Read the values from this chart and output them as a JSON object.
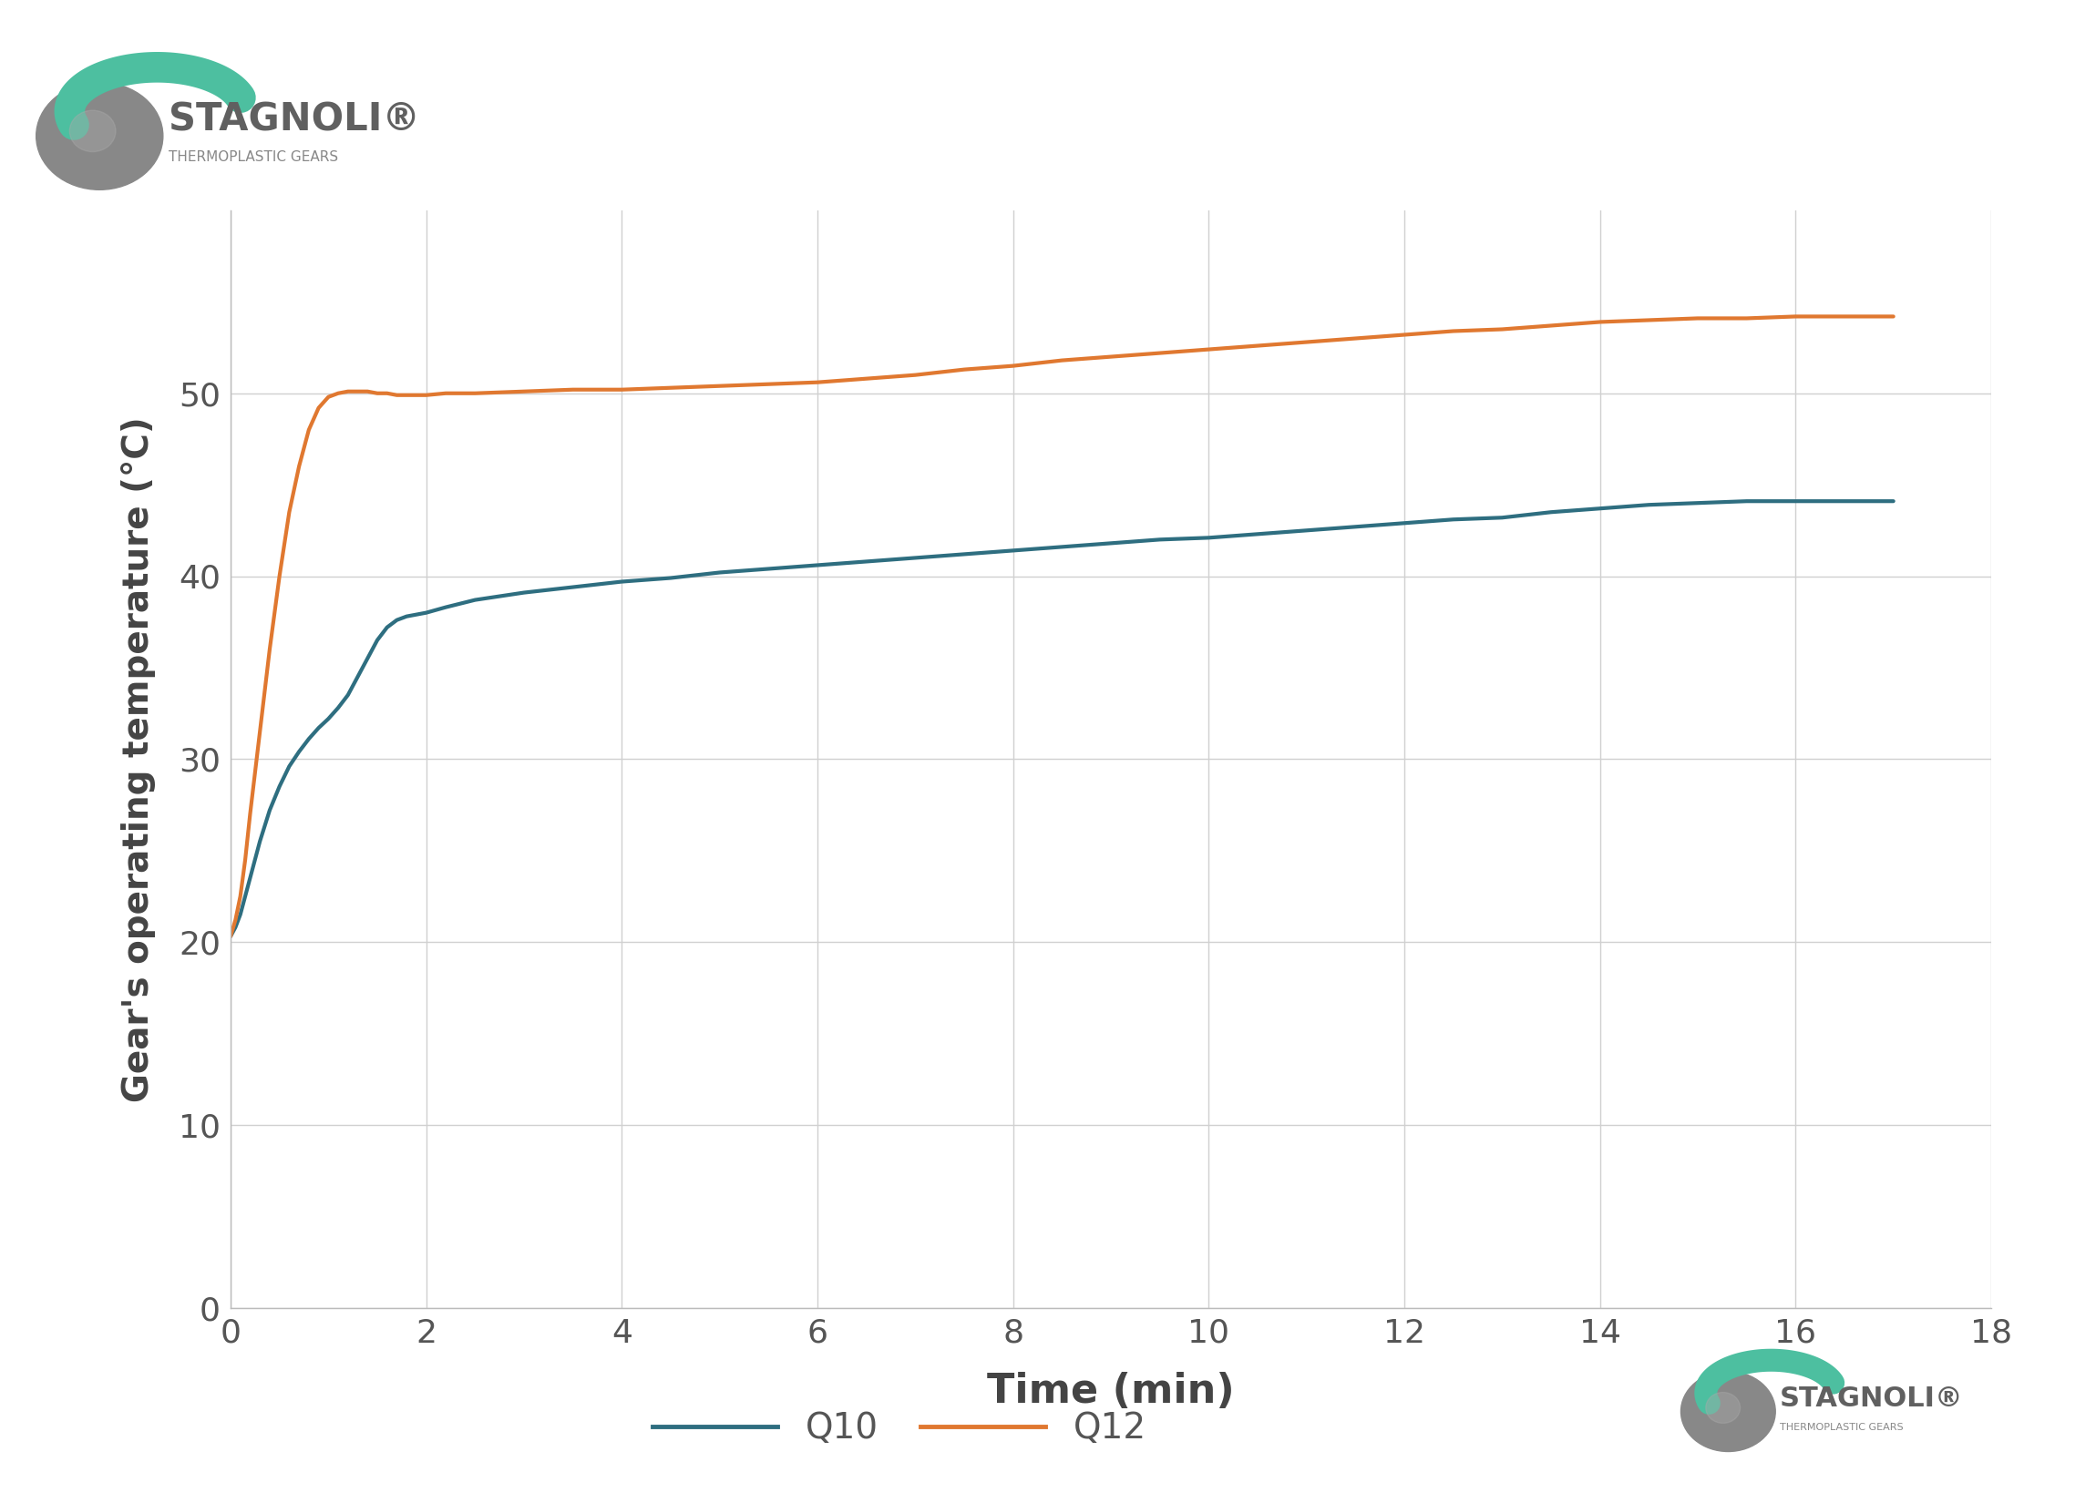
{
  "title": "",
  "xlabel": "Time (min)",
  "ylabel": "Gear's operating temperature (°C)",
  "xlim": [
    0,
    18
  ],
  "ylim": [
    0,
    60
  ],
  "xticks": [
    0,
    2,
    4,
    6,
    8,
    10,
    12,
    14,
    16,
    18
  ],
  "yticks": [
    0,
    10,
    20,
    30,
    40,
    50
  ],
  "background_color": "#ffffff",
  "grid_color": "#d0d0d0",
  "line_Q10_color": "#2e6e80",
  "line_Q12_color": "#e07830",
  "legend_labels": [
    "Q10",
    "Q12"
  ],
  "legend_text_color": "#555555",
  "tick_color": "#555555",
  "label_color": "#444444",
  "spine_color": "#bbbbbb",
  "logo_gray": "#888888",
  "logo_green": "#4dbfa0",
  "Q10_x": [
    0,
    0.05,
    0.1,
    0.15,
    0.2,
    0.3,
    0.4,
    0.5,
    0.6,
    0.7,
    0.8,
    0.9,
    1.0,
    1.1,
    1.2,
    1.3,
    1.4,
    1.5,
    1.6,
    1.7,
    1.8,
    1.9,
    2.0,
    2.2,
    2.5,
    3.0,
    3.5,
    4.0,
    4.5,
    5.0,
    5.5,
    6.0,
    6.5,
    7.0,
    7.5,
    8.0,
    8.5,
    9.0,
    9.5,
    10.0,
    10.5,
    11.0,
    11.5,
    12.0,
    12.5,
    13.0,
    13.5,
    14.0,
    14.5,
    15.0,
    15.5,
    16.0,
    16.5,
    17.0
  ],
  "Q10_y": [
    20.3,
    20.8,
    21.5,
    22.5,
    23.5,
    25.5,
    27.2,
    28.5,
    29.6,
    30.4,
    31.1,
    31.7,
    32.2,
    32.8,
    33.5,
    34.5,
    35.5,
    36.5,
    37.2,
    37.6,
    37.8,
    37.9,
    38.0,
    38.3,
    38.7,
    39.1,
    39.4,
    39.7,
    39.9,
    40.2,
    40.4,
    40.6,
    40.8,
    41.0,
    41.2,
    41.4,
    41.6,
    41.8,
    42.0,
    42.1,
    42.3,
    42.5,
    42.7,
    42.9,
    43.1,
    43.2,
    43.5,
    43.7,
    43.9,
    44.0,
    44.1,
    44.1,
    44.1,
    44.1
  ],
  "Q12_x": [
    0,
    0.05,
    0.1,
    0.15,
    0.2,
    0.3,
    0.4,
    0.5,
    0.6,
    0.7,
    0.8,
    0.9,
    1.0,
    1.1,
    1.2,
    1.3,
    1.4,
    1.5,
    1.6,
    1.7,
    1.8,
    1.9,
    2.0,
    2.2,
    2.5,
    3.0,
    3.5,
    4.0,
    4.5,
    5.0,
    5.5,
    6.0,
    6.5,
    7.0,
    7.5,
    8.0,
    8.5,
    9.0,
    9.5,
    10.0,
    10.5,
    11.0,
    11.5,
    12.0,
    12.5,
    13.0,
    13.5,
    14.0,
    14.5,
    15.0,
    15.5,
    16.0,
    16.5,
    17.0
  ],
  "Q12_y": [
    20.3,
    21.2,
    22.5,
    24.5,
    27.0,
    31.5,
    36.0,
    40.0,
    43.5,
    46.0,
    48.0,
    49.2,
    49.8,
    50.0,
    50.1,
    50.1,
    50.1,
    50.0,
    50.0,
    49.9,
    49.9,
    49.9,
    49.9,
    50.0,
    50.0,
    50.1,
    50.2,
    50.2,
    50.3,
    50.4,
    50.5,
    50.6,
    50.8,
    51.0,
    51.3,
    51.5,
    51.8,
    52.0,
    52.2,
    52.4,
    52.6,
    52.8,
    53.0,
    53.2,
    53.4,
    53.5,
    53.7,
    53.9,
    54.0,
    54.1,
    54.1,
    54.2,
    54.2,
    54.2
  ]
}
